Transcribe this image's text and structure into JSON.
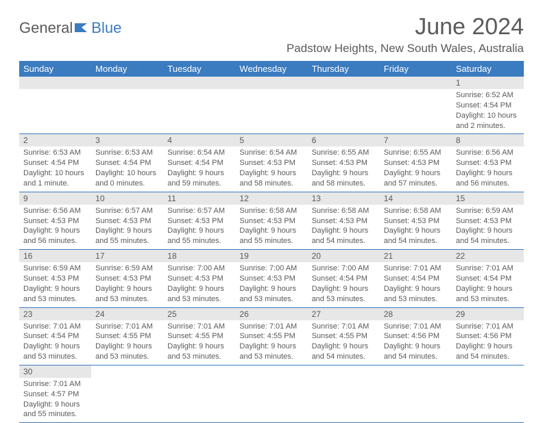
{
  "logo": {
    "textA": "General",
    "textB": "Blue"
  },
  "title": "June 2024",
  "location": "Padstow Heights, New South Wales, Australia",
  "colors": {
    "header_bg": "#3b7bbf",
    "header_text": "#ffffff",
    "daynum_bg": "#e7e7e7",
    "text": "#5a5a5a",
    "row_border": "#3b7bbf"
  },
  "fonts": {
    "title_size": 34,
    "location_size": 17,
    "header_size": 13,
    "body_size": 11
  },
  "days": [
    "Sunday",
    "Monday",
    "Tuesday",
    "Wednesday",
    "Thursday",
    "Friday",
    "Saturday"
  ],
  "weeks": [
    [
      null,
      null,
      null,
      null,
      null,
      null,
      {
        "n": "1",
        "sunrise": "Sunrise: 6:52 AM",
        "sunset": "Sunset: 4:54 PM",
        "daylight": "Daylight: 10 hours and 2 minutes."
      }
    ],
    [
      {
        "n": "2",
        "sunrise": "Sunrise: 6:53 AM",
        "sunset": "Sunset: 4:54 PM",
        "daylight": "Daylight: 10 hours and 1 minute."
      },
      {
        "n": "3",
        "sunrise": "Sunrise: 6:53 AM",
        "sunset": "Sunset: 4:54 PM",
        "daylight": "Daylight: 10 hours and 0 minutes."
      },
      {
        "n": "4",
        "sunrise": "Sunrise: 6:54 AM",
        "sunset": "Sunset: 4:54 PM",
        "daylight": "Daylight: 9 hours and 59 minutes."
      },
      {
        "n": "5",
        "sunrise": "Sunrise: 6:54 AM",
        "sunset": "Sunset: 4:53 PM",
        "daylight": "Daylight: 9 hours and 58 minutes."
      },
      {
        "n": "6",
        "sunrise": "Sunrise: 6:55 AM",
        "sunset": "Sunset: 4:53 PM",
        "daylight": "Daylight: 9 hours and 58 minutes."
      },
      {
        "n": "7",
        "sunrise": "Sunrise: 6:55 AM",
        "sunset": "Sunset: 4:53 PM",
        "daylight": "Daylight: 9 hours and 57 minutes."
      },
      {
        "n": "8",
        "sunrise": "Sunrise: 6:56 AM",
        "sunset": "Sunset: 4:53 PM",
        "daylight": "Daylight: 9 hours and 56 minutes."
      }
    ],
    [
      {
        "n": "9",
        "sunrise": "Sunrise: 6:56 AM",
        "sunset": "Sunset: 4:53 PM",
        "daylight": "Daylight: 9 hours and 56 minutes."
      },
      {
        "n": "10",
        "sunrise": "Sunrise: 6:57 AM",
        "sunset": "Sunset: 4:53 PM",
        "daylight": "Daylight: 9 hours and 55 minutes."
      },
      {
        "n": "11",
        "sunrise": "Sunrise: 6:57 AM",
        "sunset": "Sunset: 4:53 PM",
        "daylight": "Daylight: 9 hours and 55 minutes."
      },
      {
        "n": "12",
        "sunrise": "Sunrise: 6:58 AM",
        "sunset": "Sunset: 4:53 PM",
        "daylight": "Daylight: 9 hours and 55 minutes."
      },
      {
        "n": "13",
        "sunrise": "Sunrise: 6:58 AM",
        "sunset": "Sunset: 4:53 PM",
        "daylight": "Daylight: 9 hours and 54 minutes."
      },
      {
        "n": "14",
        "sunrise": "Sunrise: 6:58 AM",
        "sunset": "Sunset: 4:53 PM",
        "daylight": "Daylight: 9 hours and 54 minutes."
      },
      {
        "n": "15",
        "sunrise": "Sunrise: 6:59 AM",
        "sunset": "Sunset: 4:53 PM",
        "daylight": "Daylight: 9 hours and 54 minutes."
      }
    ],
    [
      {
        "n": "16",
        "sunrise": "Sunrise: 6:59 AM",
        "sunset": "Sunset: 4:53 PM",
        "daylight": "Daylight: 9 hours and 53 minutes."
      },
      {
        "n": "17",
        "sunrise": "Sunrise: 6:59 AM",
        "sunset": "Sunset: 4:53 PM",
        "daylight": "Daylight: 9 hours and 53 minutes."
      },
      {
        "n": "18",
        "sunrise": "Sunrise: 7:00 AM",
        "sunset": "Sunset: 4:53 PM",
        "daylight": "Daylight: 9 hours and 53 minutes."
      },
      {
        "n": "19",
        "sunrise": "Sunrise: 7:00 AM",
        "sunset": "Sunset: 4:53 PM",
        "daylight": "Daylight: 9 hours and 53 minutes."
      },
      {
        "n": "20",
        "sunrise": "Sunrise: 7:00 AM",
        "sunset": "Sunset: 4:54 PM",
        "daylight": "Daylight: 9 hours and 53 minutes."
      },
      {
        "n": "21",
        "sunrise": "Sunrise: 7:01 AM",
        "sunset": "Sunset: 4:54 PM",
        "daylight": "Daylight: 9 hours and 53 minutes."
      },
      {
        "n": "22",
        "sunrise": "Sunrise: 7:01 AM",
        "sunset": "Sunset: 4:54 PM",
        "daylight": "Daylight: 9 hours and 53 minutes."
      }
    ],
    [
      {
        "n": "23",
        "sunrise": "Sunrise: 7:01 AM",
        "sunset": "Sunset: 4:54 PM",
        "daylight": "Daylight: 9 hours and 53 minutes."
      },
      {
        "n": "24",
        "sunrise": "Sunrise: 7:01 AM",
        "sunset": "Sunset: 4:55 PM",
        "daylight": "Daylight: 9 hours and 53 minutes."
      },
      {
        "n": "25",
        "sunrise": "Sunrise: 7:01 AM",
        "sunset": "Sunset: 4:55 PM",
        "daylight": "Daylight: 9 hours and 53 minutes."
      },
      {
        "n": "26",
        "sunrise": "Sunrise: 7:01 AM",
        "sunset": "Sunset: 4:55 PM",
        "daylight": "Daylight: 9 hours and 53 minutes."
      },
      {
        "n": "27",
        "sunrise": "Sunrise: 7:01 AM",
        "sunset": "Sunset: 4:55 PM",
        "daylight": "Daylight: 9 hours and 54 minutes."
      },
      {
        "n": "28",
        "sunrise": "Sunrise: 7:01 AM",
        "sunset": "Sunset: 4:56 PM",
        "daylight": "Daylight: 9 hours and 54 minutes."
      },
      {
        "n": "29",
        "sunrise": "Sunrise: 7:01 AM",
        "sunset": "Sunset: 4:56 PM",
        "daylight": "Daylight: 9 hours and 54 minutes."
      }
    ],
    [
      {
        "n": "30",
        "sunrise": "Sunrise: 7:01 AM",
        "sunset": "Sunset: 4:57 PM",
        "daylight": "Daylight: 9 hours and 55 minutes."
      },
      null,
      null,
      null,
      null,
      null,
      null
    ]
  ]
}
